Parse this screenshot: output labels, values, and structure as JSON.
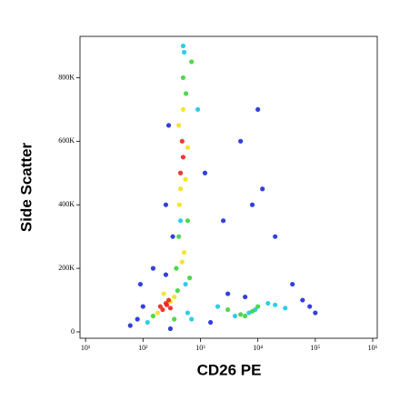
{
  "chart_data": {
    "type": "scatter",
    "xlabel": "CD26 PE",
    "ylabel": "Side Scatter",
    "xscale": "log",
    "xlim": [
      8,
      1200000
    ],
    "xticks": [
      {
        "value": 10,
        "label": "10¹"
      },
      {
        "value": 100,
        "label": "10²"
      },
      {
        "value": 1000,
        "label": "10³"
      },
      {
        "value": 10000,
        "label": "10⁴"
      },
      {
        "value": 100000,
        "label": "10⁵"
      },
      {
        "value": 1000000,
        "label": "10⁶"
      }
    ],
    "ylim": [
      -20000,
      930000
    ],
    "yticks": [
      0,
      {
        "value": 200000,
        "label": "200K"
      },
      {
        "value": 400000,
        "label": "400K"
      },
      {
        "value": 600000,
        "label": "600K"
      },
      {
        "value": 800000,
        "label": "800K"
      }
    ],
    "series": [
      {
        "color": "#1e2bd6",
        "x": [
          60,
          80,
          100,
          90,
          150,
          250,
          330,
          280,
          1200,
          2500,
          5000,
          8000,
          12000,
          20000,
          40000,
          60000,
          80000,
          100000,
          3000,
          6000,
          10000,
          250,
          1500,
          300
        ],
        "y": [
          20000,
          40000,
          80000,
          150000,
          200000,
          400000,
          300000,
          650000,
          500000,
          350000,
          600000,
          400000,
          450000,
          300000,
          150000,
          100000,
          80000,
          60000,
          120000,
          110000,
          700000,
          180000,
          30000,
          10000
        ]
      },
      {
        "color": "#19c8e6",
        "x": [
          120,
          600,
          700,
          900,
          2000,
          4000,
          7000,
          9000,
          15000,
          20000,
          30000,
          500,
          450,
          550,
          520
        ],
        "y": [
          30000,
          60000,
          40000,
          700000,
          80000,
          50000,
          60000,
          70000,
          90000,
          85000,
          75000,
          900000,
          350000,
          150000,
          880000
        ]
      },
      {
        "color": "#3ed33a",
        "x": [
          150,
          400,
          350,
          500,
          600,
          420,
          560,
          380,
          650,
          3000,
          5000,
          8000,
          10000,
          6000,
          700
        ],
        "y": [
          50000,
          130000,
          40000,
          800000,
          350000,
          300000,
          750000,
          200000,
          170000,
          70000,
          55000,
          65000,
          80000,
          50000,
          850000
        ]
      },
      {
        "color": "#f2e21b",
        "x": [
          180,
          350,
          300,
          230,
          450,
          420,
          550,
          500,
          480,
          520,
          430,
          600
        ],
        "y": [
          60000,
          110000,
          95000,
          120000,
          450000,
          650000,
          480000,
          700000,
          220000,
          250000,
          400000,
          580000
        ]
      },
      {
        "color": "#e8261c",
        "x": [
          200,
          250,
          300,
          280,
          220,
          260,
          500,
          450,
          480
        ],
        "y": [
          80000,
          90000,
          75000,
          100000,
          70000,
          85000,
          550000,
          500000,
          600000
        ]
      }
    ]
  }
}
